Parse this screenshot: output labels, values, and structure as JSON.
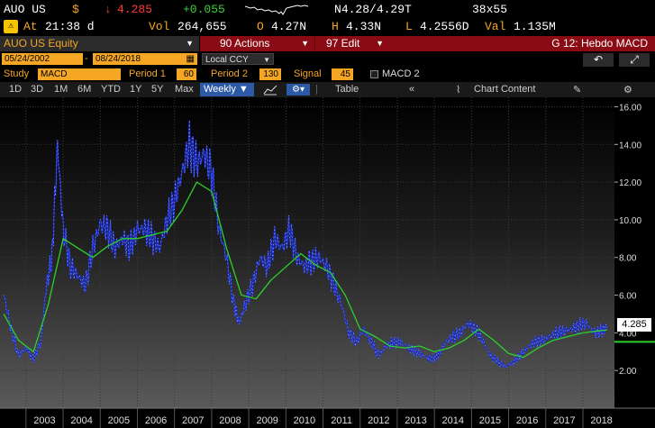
{
  "quote": {
    "ticker": "AUO US",
    "currency_icon": "dollar-icon",
    "last": "4.285",
    "change": "+0.055",
    "n_label": "N",
    "bid_ask": "4.28/4.29",
    "t_label": "T",
    "size": "38x55",
    "down_arrow": "↓"
  },
  "stats": {
    "at_label": "At",
    "time": "21:38 d",
    "vol_label": "Vol",
    "volume": "264,655",
    "open_label": "O",
    "open": "4.27N",
    "high_label": "H",
    "high": "4.33N",
    "low_label": "L",
    "low": "4.2556D",
    "val_label": "Val",
    "value": "1.135M"
  },
  "function_bar": {
    "security": "AUO US Equity",
    "actions_label": "90 Actions",
    "edit_label": "97 Edit",
    "title": "G 12: Hebdo MACD"
  },
  "dates": {
    "start": "05/24/2002",
    "end": "08/24/2018",
    "currency": "Local CCY"
  },
  "study": {
    "study_label": "Study",
    "study_value": "MACD",
    "period1_label": "Period 1",
    "period1_value": "60",
    "period2_label": "Period 2",
    "period2_value": "130",
    "signal_label": "Signal",
    "signal_value": "45",
    "macd2_label": "MACD 2"
  },
  "toolbar": {
    "ranges": [
      "1D",
      "3D",
      "1M",
      "6M",
      "YTD",
      "1Y",
      "5Y",
      "Max"
    ],
    "frequency": "Weekly ▼",
    "table_label": "Table",
    "chart_content_label": "Chart Content",
    "collapse_icon": "double-chevron-left-icon"
  },
  "colors": {
    "accent_amber": "#f5a623",
    "function_red": "#8a0b13",
    "price_blue": "#1a2fd6",
    "ma_green": "#2bd12b"
  },
  "chart_data": {
    "type": "line",
    "y_ticks": [
      "16.00",
      "14.00",
      "12.00",
      "10.00",
      "8.00",
      "6.00",
      "4.00",
      "2.00"
    ],
    "ylim": [
      0,
      16.5
    ],
    "x_ticks": [
      "2003",
      "2004",
      "2005",
      "2006",
      "2007",
      "2008",
      "2009",
      "2010",
      "2011",
      "2012",
      "2013",
      "2014",
      "2015",
      "2016",
      "2017",
      "2018"
    ],
    "last_price_label": "4.285",
    "series": [
      {
        "role": "price",
        "x": [
          2002.4,
          2002.6,
          2002.8,
          2003.0,
          2003.2,
          2003.4,
          2003.55,
          2003.7,
          2003.85,
          2004.0,
          2004.2,
          2004.4,
          2004.6,
          2004.8,
          2005.0,
          2005.2,
          2005.4,
          2005.6,
          2005.8,
          2006.0,
          2006.2,
          2006.4,
          2006.6,
          2006.8,
          2007.0,
          2007.2,
          2007.4,
          2007.6,
          2007.8,
          2008.0,
          2008.2,
          2008.4,
          2008.6,
          2008.75,
          2008.9,
          2009.1,
          2009.3,
          2009.5,
          2009.7,
          2009.9,
          2010.1,
          2010.3,
          2010.5,
          2010.7,
          2010.9,
          2011.1,
          2011.3,
          2011.5,
          2011.7,
          2011.9,
          2012.1,
          2012.3,
          2012.5,
          2012.7,
          2012.9,
          2013.1,
          2013.3,
          2013.5,
          2013.7,
          2013.9,
          2014.1,
          2014.3,
          2014.5,
          2014.7,
          2014.9,
          2015.1,
          2015.3,
          2015.5,
          2015.7,
          2015.9,
          2016.1,
          2016.3,
          2016.5,
          2016.7,
          2016.9,
          2017.1,
          2017.3,
          2017.5,
          2017.7,
          2017.9,
          2018.1,
          2018.3,
          2018.5,
          2018.65
        ],
        "values": [
          6.0,
          4.2,
          2.8,
          3.2,
          2.6,
          3.5,
          6.5,
          8.0,
          14.0,
          9.5,
          7.5,
          7.0,
          6.5,
          8.5,
          9.8,
          9.5,
          8.5,
          9.0,
          8.5,
          9.5,
          9.5,
          9.0,
          8.5,
          10.0,
          11.0,
          12.5,
          14.0,
          13.0,
          13.5,
          12.5,
          9.5,
          8.0,
          5.5,
          4.5,
          5.5,
          6.5,
          8.0,
          7.5,
          9.0,
          8.5,
          9.5,
          8.0,
          7.5,
          7.8,
          8.0,
          7.5,
          6.5,
          5.5,
          4.0,
          3.5,
          4.2,
          3.5,
          2.8,
          3.3,
          3.5,
          3.5,
          3.2,
          3.0,
          2.8,
          2.6,
          2.8,
          3.5,
          3.8,
          4.0,
          4.5,
          4.2,
          3.6,
          2.8,
          2.5,
          2.2,
          2.4,
          2.8,
          3.2,
          3.5,
          3.6,
          3.8,
          4.0,
          4.1,
          4.2,
          4.4,
          4.5,
          4.0,
          4.1,
          4.285
        ]
      },
      {
        "role": "moving-average",
        "x": [
          2002.4,
          2002.8,
          2003.2,
          2003.6,
          2004.0,
          2004.4,
          2004.8,
          2005.2,
          2005.6,
          2006.0,
          2006.4,
          2006.8,
          2007.2,
          2007.6,
          2008.0,
          2008.4,
          2008.8,
          2009.2,
          2009.6,
          2010.0,
          2010.4,
          2010.8,
          2011.2,
          2011.6,
          2012.0,
          2012.4,
          2012.8,
          2013.2,
          2013.6,
          2014.0,
          2014.4,
          2014.8,
          2015.2,
          2015.6,
          2016.0,
          2016.4,
          2016.8,
          2017.2,
          2017.6,
          2018.0,
          2018.4,
          2018.65
        ],
        "values": [
          5.0,
          3.6,
          3.0,
          5.5,
          9.0,
          8.5,
          8.0,
          8.6,
          9.0,
          9.0,
          9.2,
          9.4,
          10.5,
          12.0,
          11.5,
          8.5,
          6.0,
          5.8,
          6.8,
          7.5,
          8.2,
          7.6,
          7.2,
          6.0,
          4.2,
          3.8,
          3.3,
          3.2,
          3.3,
          3.0,
          3.2,
          3.6,
          4.2,
          3.6,
          2.9,
          2.7,
          3.2,
          3.6,
          3.8,
          4.0,
          4.1,
          4.15
        ]
      }
    ]
  }
}
